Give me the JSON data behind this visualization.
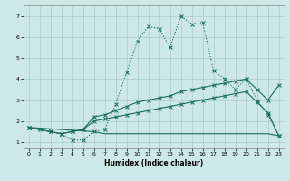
{
  "xlabel": "Humidex (Indice chaleur)",
  "background_color": "#cce8e8",
  "grid_color": "#aacccc",
  "line_color": "#1a6b5a",
  "xlim": [
    -0.5,
    23.5
  ],
  "ylim": [
    0.7,
    7.5
  ],
  "xticks": [
    0,
    1,
    2,
    3,
    4,
    5,
    6,
    7,
    8,
    9,
    10,
    11,
    12,
    13,
    14,
    15,
    16,
    17,
    18,
    19,
    20,
    21,
    22,
    23
  ],
  "yticks": [
    1,
    2,
    3,
    4,
    5,
    6,
    7
  ],
  "zigzag_x": [
    0,
    1,
    2,
    3,
    4,
    5,
    6,
    7,
    8,
    9,
    10,
    11,
    12,
    13,
    14,
    15,
    16,
    17,
    18,
    19,
    20,
    21,
    22,
    23
  ],
  "zigzag_y": [
    1.7,
    1.6,
    1.5,
    1.4,
    1.1,
    1.1,
    1.5,
    1.6,
    2.8,
    4.3,
    5.8,
    6.5,
    6.4,
    5.5,
    7.0,
    6.6,
    6.7,
    4.4,
    4.0,
    3.5,
    4.0,
    3.0,
    2.3,
    1.3
  ],
  "rise1_x": [
    0,
    2,
    3,
    4,
    5,
    6,
    7,
    8,
    9,
    10,
    11,
    12,
    13,
    14,
    15,
    16,
    17,
    18,
    19,
    20,
    21,
    22,
    23
  ],
  "rise1_y": [
    1.7,
    1.5,
    1.4,
    1.5,
    1.6,
    2.2,
    2.3,
    2.5,
    2.7,
    2.9,
    3.0,
    3.1,
    3.2,
    3.4,
    3.5,
    3.6,
    3.7,
    3.8,
    3.9,
    4.0,
    3.5,
    3.0,
    3.7
  ],
  "rise2_x": [
    0,
    2,
    3,
    4,
    5,
    6,
    7,
    8,
    9,
    10,
    11,
    12,
    13,
    14,
    15,
    16,
    17,
    18,
    19,
    20,
    21,
    22,
    23
  ],
  "rise2_y": [
    1.7,
    1.5,
    1.4,
    1.5,
    1.6,
    2.0,
    2.1,
    2.2,
    2.3,
    2.4,
    2.5,
    2.6,
    2.7,
    2.8,
    2.9,
    3.0,
    3.1,
    3.2,
    3.3,
    3.4,
    2.9,
    2.4,
    1.3
  ],
  "flat_x": [
    0,
    6,
    7,
    8,
    9,
    10,
    11,
    12,
    13,
    14,
    15,
    16,
    17,
    18,
    19,
    20,
    21,
    22,
    23
  ],
  "flat_y": [
    1.7,
    1.5,
    1.4,
    1.4,
    1.4,
    1.4,
    1.4,
    1.4,
    1.4,
    1.4,
    1.4,
    1.4,
    1.4,
    1.4,
    1.4,
    1.4,
    1.4,
    1.4,
    1.3
  ]
}
